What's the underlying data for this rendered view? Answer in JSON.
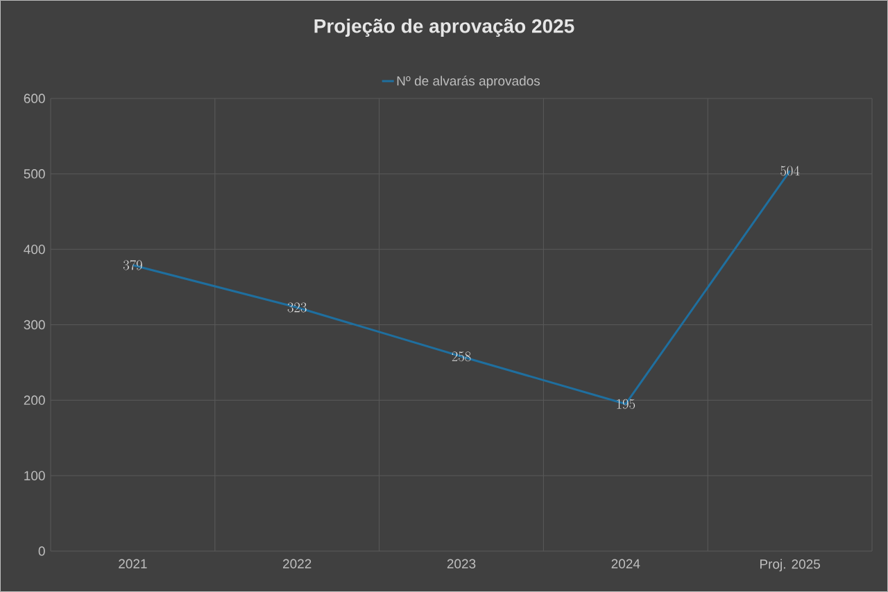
{
  "chart_data": {
    "type": "line",
    "title": "Projeção de aprovação 2025",
    "categories": [
      "2021",
      "2022",
      "2023",
      "2024",
      "Proj. 2025"
    ],
    "series": [
      {
        "name": "Nº de alvarás aprovados",
        "color": "#1f6f9f",
        "values": [
          379,
          323,
          258,
          195,
          504
        ]
      }
    ],
    "ylim": [
      0,
      600
    ],
    "yticks": [
      0,
      100,
      200,
      300,
      400,
      500,
      600
    ],
    "grid": true,
    "legend": "top",
    "data_labels": true,
    "marker": "none",
    "line_style": "solid"
  }
}
